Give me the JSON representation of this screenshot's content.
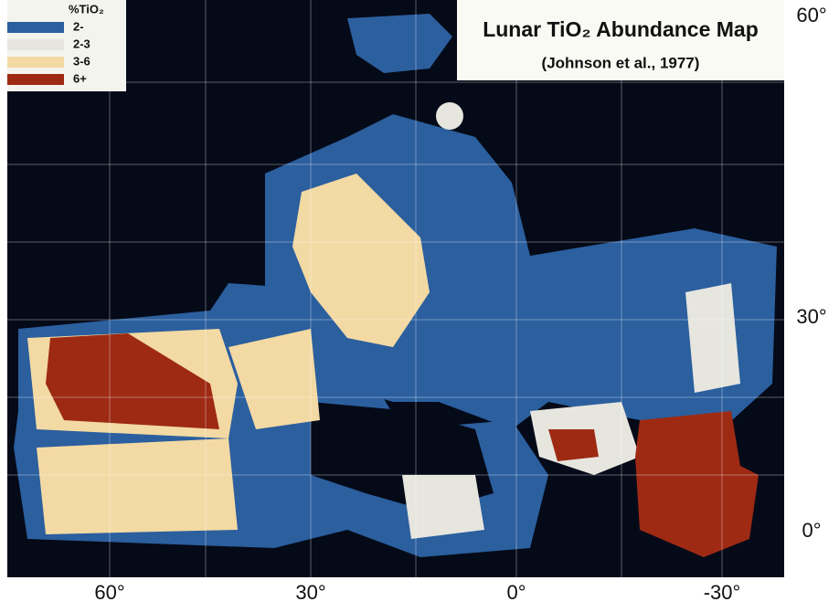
{
  "title": "Lunar TiO₂ Abundance Map",
  "subtitle": "(Johnson et al., 1977)",
  "legend": {
    "title": "%TiO₂",
    "items": [
      {
        "label": "2-",
        "color": "#2b5f9e"
      },
      {
        "label": "2-3",
        "color": "#e6e6df"
      },
      {
        "label": "3-6",
        "color": "#f3d9a3"
      },
      {
        "label": "6+",
        "color": "#9e2a14"
      }
    ]
  },
  "x_labels": [
    "60°",
    "30°",
    "0°",
    "-30°"
  ],
  "y_labels": [
    "60°",
    "30°",
    "0°"
  ]
}
